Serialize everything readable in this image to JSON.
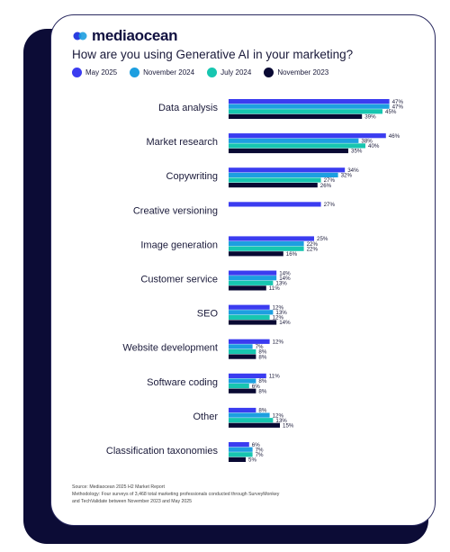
{
  "brand": {
    "name": "mediaocean"
  },
  "colors": {
    "may2025": "#3b3cf0",
    "nov2024": "#1d9fe0",
    "jul2024": "#17c6b0",
    "nov2023": "#090933"
  },
  "chart_data": {
    "type": "bar",
    "orientation": "horizontal",
    "title": "How are you using Generative AI in your marketing?",
    "legend_position": "top",
    "value_suffix": "%",
    "xlim": [
      0,
      50
    ],
    "grid": false,
    "categories": [
      "Data analysis",
      "Market research",
      "Copywriting",
      "Creative versioning",
      "Image generation",
      "Customer service",
      "SEO",
      "Website development",
      "Software coding",
      "Other",
      "Classification taxonomies"
    ],
    "series": [
      {
        "name": "May 2025",
        "color": "#3b3cf0",
        "values": [
          47,
          46,
          34,
          27,
          25,
          14,
          12,
          12,
          11,
          8,
          6
        ]
      },
      {
        "name": "November 2024",
        "color": "#1d9fe0",
        "values": [
          47,
          38,
          32,
          null,
          22,
          14,
          13,
          7,
          8,
          12,
          7
        ]
      },
      {
        "name": "July 2024",
        "color": "#17c6b0",
        "values": [
          45,
          40,
          27,
          null,
          22,
          13,
          12,
          8,
          6,
          13,
          7
        ]
      },
      {
        "name": "November 2023",
        "color": "#090933",
        "values": [
          39,
          35,
          26,
          null,
          16,
          11,
          14,
          8,
          8,
          15,
          5
        ]
      }
    ]
  },
  "footnote": {
    "source": "Source: Mediaocean 2025 H2 Market Report",
    "methodology_1": "Methodology: Four surveys of 3,468 total marketing professionals conducted through SurveyMonkey",
    "methodology_2": "and TechValidate between November 2023 and May 2025"
  }
}
